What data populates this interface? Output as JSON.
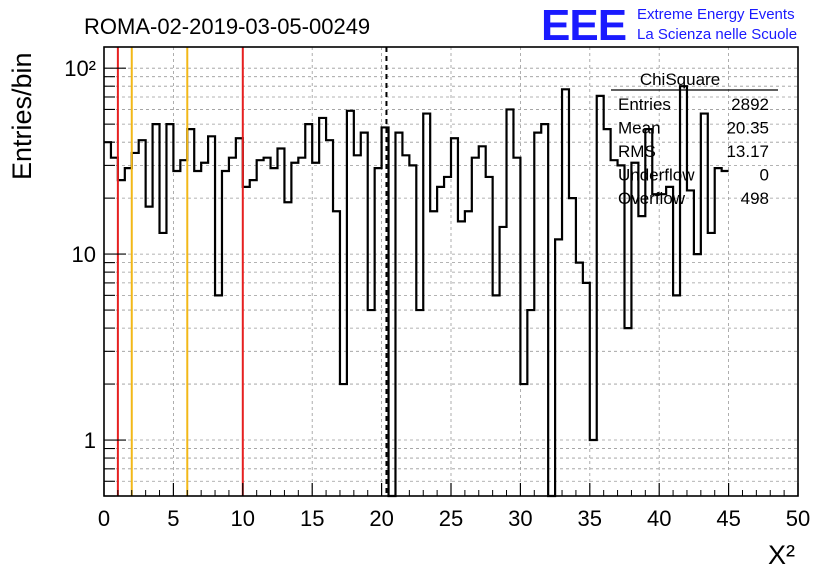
{
  "run_title": "ROMA-02-2019-03-05-00249",
  "brand": {
    "logo_text": "EEE",
    "line1": "Extreme Energy Events",
    "line2": "La Scienza nelle Scuole",
    "color": "#1a1aff"
  },
  "chart_data": {
    "type": "bar",
    "style": "step-histogram",
    "xlabel": "X²",
    "ylabel": "Entries/bin",
    "xlim": [
      0,
      50
    ],
    "ylim": [
      0.5,
      130
    ],
    "yscale": "log",
    "grid": true,
    "x_ticks": [
      "0",
      "5",
      "10",
      "15",
      "20",
      "25",
      "30",
      "35",
      "40",
      "45",
      "50"
    ],
    "y_ticks": [
      {
        "value": 1,
        "label": "1"
      },
      {
        "value": 10,
        "label": "10"
      },
      {
        "value": 100,
        "label": "10²"
      }
    ],
    "bin_width": 0.5,
    "values": [
      40,
      33,
      25,
      29,
      35,
      41,
      18,
      50,
      13,
      50,
      28,
      32,
      47,
      28,
      31,
      43,
      6,
      28,
      33,
      42,
      23,
      25,
      32,
      33,
      29,
      37,
      19,
      31,
      33,
      50,
      31,
      54,
      41,
      17,
      2,
      59,
      34,
      45,
      5,
      29,
      48,
      0,
      45,
      34,
      30,
      5,
      57,
      17,
      23,
      26,
      42,
      15,
      17,
      33,
      38,
      26,
      6,
      14,
      60,
      33,
      2,
      5,
      45,
      50,
      0.5,
      12,
      77,
      20,
      9,
      7,
      1,
      71,
      47,
      32,
      30,
      4,
      31,
      16,
      47,
      21,
      21,
      23,
      6,
      80,
      22,
      10,
      57,
      13,
      29,
      28
    ],
    "vertical_lines": [
      {
        "x": 1.0,
        "color": "#e62020",
        "style": "solid"
      },
      {
        "x": 2.0,
        "color": "#f2b818",
        "style": "solid"
      },
      {
        "x": 6.0,
        "color": "#f2b818",
        "style": "solid"
      },
      {
        "x": 10.0,
        "color": "#e62020",
        "style": "solid"
      },
      {
        "x": 20.35,
        "color": "#000000",
        "style": "dashed"
      }
    ],
    "stats_box": {
      "title": "ChiSquare",
      "rows": [
        {
          "label": "Entries",
          "value": "2892"
        },
        {
          "label": "Mean",
          "value": "20.35"
        },
        {
          "label": "RMS",
          "value": "13.17"
        },
        {
          "label": "Underflow",
          "value": "0"
        },
        {
          "label": "Overflow",
          "value": "498"
        }
      ]
    }
  }
}
